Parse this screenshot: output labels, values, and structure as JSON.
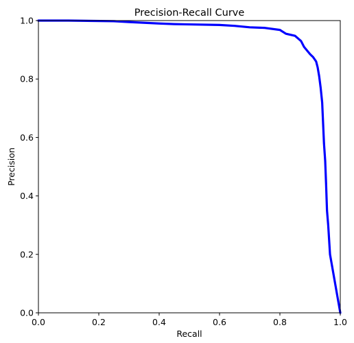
{
  "chart_data": {
    "type": "line",
    "title": "Precision-Recall Curve",
    "xlabel": "Recall",
    "ylabel": "Precision",
    "xlim": [
      0,
      1
    ],
    "ylim": [
      0,
      1
    ],
    "xticks": [
      0.0,
      0.2,
      0.4,
      0.6,
      0.8,
      1.0
    ],
    "yticks": [
      0.0,
      0.2,
      0.4,
      0.6,
      0.8,
      1.0
    ],
    "xtick_labels": [
      "0.0",
      "0.2",
      "0.4",
      "0.6",
      "0.8",
      "1.0"
    ],
    "ytick_labels": [
      "0.0",
      "0.2",
      "0.4",
      "0.6",
      "0.8",
      "1.0"
    ],
    "grid": false,
    "series": [
      {
        "color": "#0000ff",
        "x": [
          0.0,
          0.1,
          0.25,
          0.3,
          0.4,
          0.45,
          0.5,
          0.6,
          0.65,
          0.7,
          0.75,
          0.8,
          0.82,
          0.85,
          0.87,
          0.88,
          0.9,
          0.91,
          0.92,
          0.925,
          0.93,
          0.935,
          0.94,
          0.943,
          0.946,
          0.95,
          0.953,
          0.956,
          0.96,
          0.963,
          0.966,
          1.0
        ],
        "y": [
          1.0,
          1.0,
          0.998,
          0.995,
          0.99,
          0.988,
          0.987,
          0.985,
          0.982,
          0.977,
          0.975,
          0.968,
          0.955,
          0.948,
          0.93,
          0.91,
          0.885,
          0.875,
          0.86,
          0.84,
          0.81,
          0.77,
          0.72,
          0.65,
          0.58,
          0.52,
          0.44,
          0.35,
          0.3,
          0.25,
          0.2,
          0.0
        ]
      }
    ]
  }
}
